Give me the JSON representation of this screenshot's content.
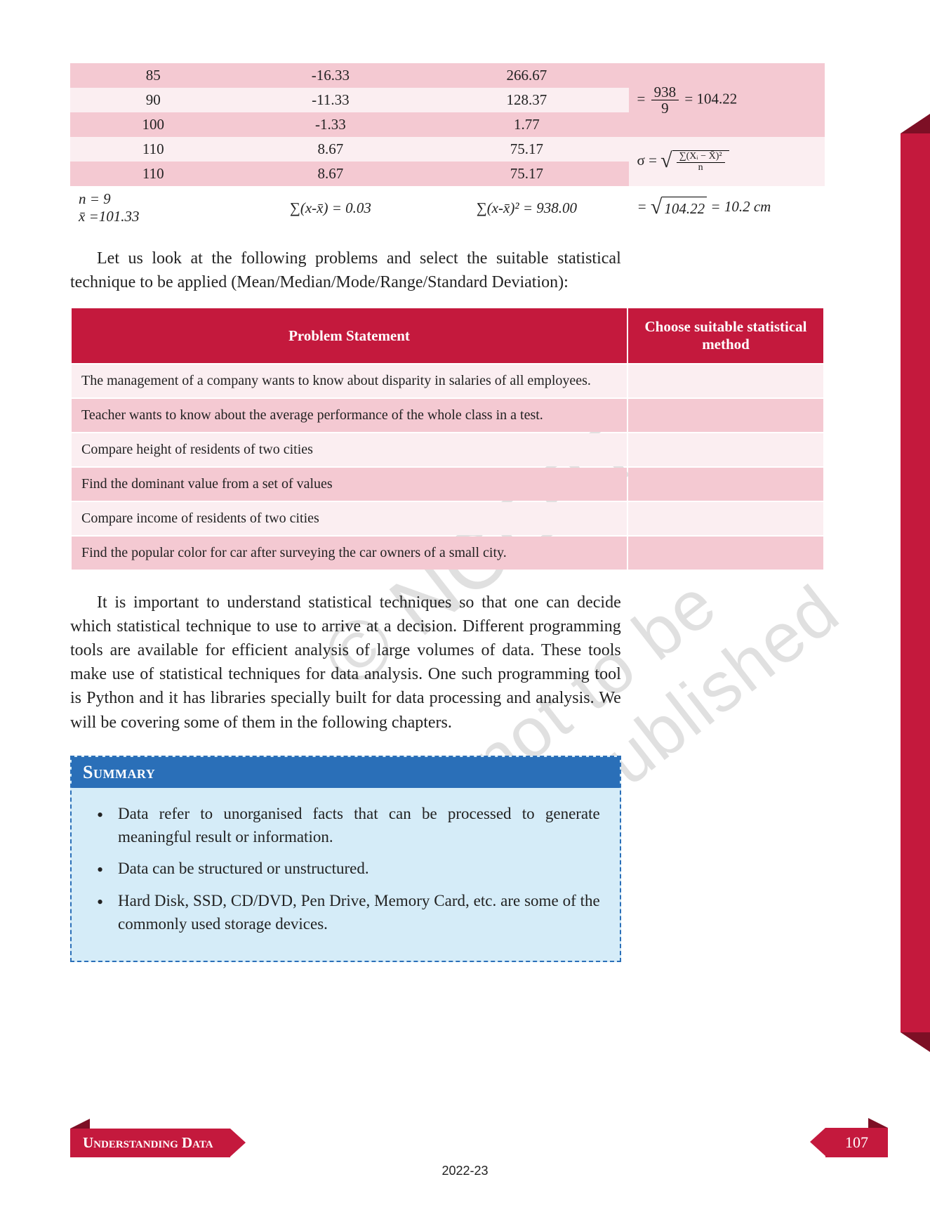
{
  "colors": {
    "accent": "#c4193d",
    "accent_dark": "#7d0f25",
    "row_pink": "#f4c9d2",
    "row_light": "#fbeef1",
    "summary_bg": "#d5ecf8",
    "summary_border": "#2a6fb8"
  },
  "data_table": {
    "rows": [
      {
        "x": "85",
        "dev": "-16.33",
        "sq": "266.67"
      },
      {
        "x": "90",
        "dev": "-11.33",
        "sq": "128.37"
      },
      {
        "x": "100",
        "dev": "-1.33",
        "sq": "1.77"
      },
      {
        "x": "110",
        "dev": "8.67",
        "sq": "75.17"
      },
      {
        "x": "110",
        "dev": "8.67",
        "sq": "75.17"
      }
    ],
    "summary": {
      "n_label": "n = 9",
      "mean_label": "x̄ =101.33",
      "sum_dev": "∑(x-x̄) = 0.03",
      "sum_sq": "∑(x-x̄)² = 938.00"
    },
    "calc": {
      "frac_num": "938",
      "frac_den": "9",
      "mean_sq": "104.22",
      "sd_root": "104.22",
      "sd_val": "10.2",
      "unit": "cm"
    }
  },
  "para1": "Let us look at the following problems and select the suitable statistical technique to be applied (Mean/Median/Mode/Range/Standard Deviation):",
  "prob_table": {
    "head1": "Problem Statement",
    "head2": "Choose suitable statistical method",
    "rows": [
      "The management of a company wants to know about disparity in salaries of all employees.",
      "Teacher wants to know about the average performance of the whole class in a test.",
      "Compare height of residents of two cities",
      "Find the dominant value from a set of values",
      "Compare income of residents of two cities",
      "Find the popular color for car after surveying the car owners of a small city."
    ]
  },
  "para2": "It is important to understand statistical techniques so that one can decide which statistical technique to use to arrive at a decision. Different programming tools are available for efficient analysis of large volumes of data. These tools make use of statistical techniques for data analysis. One such programming tool is Python and it has libraries specially built for data processing and analysis. We will be covering some of them in the following chapters.",
  "summary": {
    "title": "Summary",
    "items": [
      "Data refer to unorganised facts that can be processed to generate meaningful result or information.",
      "Data can be structured or unstructured.",
      "Hard Disk, SSD, CD/DVD, Pen Drive, Memory Card, etc. are some of the commonly used storage devices."
    ]
  },
  "footer": {
    "chapter": "Understanding Data",
    "page": "107",
    "year": "2022-23"
  },
  "watermark": {
    "w1": "© NCERT",
    "w2": "not to be republished"
  }
}
